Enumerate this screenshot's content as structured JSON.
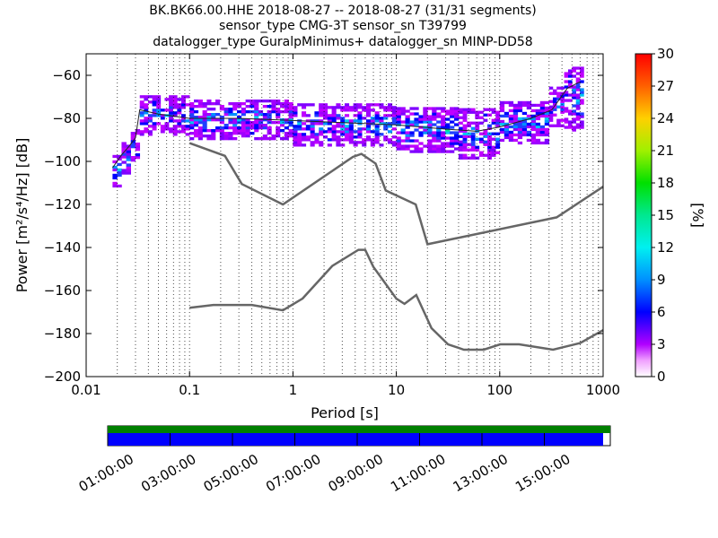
{
  "title_lines": [
    "BK.BK66.00.HHE   2018-08-27 -- 2018-08-27  (31/31 segments)",
    "sensor_type CMG-3T sensor_sn T39799",
    "datalogger_type GuralpMinimus+ datalogger_sn MINP-DD58"
  ],
  "colors": {
    "noise_model": "#666666",
    "mode_line": "#222222",
    "coverage_top": "#008000",
    "coverage_bottom": "#0000ff"
  },
  "chart_data": {
    "type": "heatmap",
    "subtype": "probabilistic power spectral density",
    "xlabel": "Period [s]",
    "ylabel": "Power [m²/s⁴/Hz] [dB]",
    "xscale": "log",
    "xlim": [
      0.01,
      1000
    ],
    "ylim": [
      -200,
      -50
    ],
    "grid": "dotted vertical lines",
    "x_ticks": [
      {
        "value": 0.01,
        "label": "0.01"
      },
      {
        "value": 0.1,
        "label": "0.1"
      },
      {
        "value": 1,
        "label": "1"
      },
      {
        "value": 10,
        "label": "10"
      },
      {
        "value": 100,
        "label": "100"
      },
      {
        "value": 1000,
        "label": "1000"
      }
    ],
    "y_ticks": [
      {
        "value": -60,
        "label": "−60"
      },
      {
        "value": -80,
        "label": "−80"
      },
      {
        "value": -100,
        "label": "−100"
      },
      {
        "value": -120,
        "label": "−120"
      },
      {
        "value": -140,
        "label": "−140"
      },
      {
        "value": -160,
        "label": "−160"
      },
      {
        "value": -180,
        "label": "−180"
      },
      {
        "value": -200,
        "label": "−200"
      }
    ],
    "colorbar": {
      "label": "[%]",
      "range": [
        0,
        30
      ],
      "ticks": [
        "0",
        "3",
        "6",
        "9",
        "12",
        "15",
        "18",
        "21",
        "24",
        "27",
        "30"
      ]
    },
    "new_high_noise_model": [
      [
        0.1,
        -91.5
      ],
      [
        0.22,
        -97.4
      ],
      [
        0.32,
        -110.5
      ],
      [
        0.8,
        -120
      ],
      [
        3.8,
        -97.9
      ],
      [
        4.6,
        -96.5
      ],
      [
        6.3,
        -101
      ],
      [
        7.9,
        -113.5
      ],
      [
        15.4,
        -120
      ],
      [
        20,
        -138.5
      ],
      [
        354.8,
        -126
      ],
      [
        10000,
        -80.1
      ]
    ],
    "new_low_noise_model": [
      [
        0.1,
        -168
      ],
      [
        0.17,
        -166.7
      ],
      [
        0.4,
        -166.7
      ],
      [
        0.8,
        -169.2
      ],
      [
        1.24,
        -163.7
      ],
      [
        2.4,
        -148.6
      ],
      [
        4.3,
        -141.1
      ],
      [
        5,
        -141.1
      ],
      [
        6,
        -149
      ],
      [
        10,
        -163.8
      ],
      [
        12,
        -166.2
      ],
      [
        15.6,
        -162.1
      ],
      [
        21.9,
        -177.5
      ],
      [
        31.6,
        -185
      ],
      [
        45,
        -187.5
      ],
      [
        70,
        -187.5
      ],
      [
        101,
        -185
      ],
      [
        154,
        -185
      ],
      [
        328,
        -187.5
      ],
      [
        600,
        -184.4
      ],
      [
        10000,
        -151.5
      ]
    ],
    "mode_curve": [
      [
        0.018,
        -103
      ],
      [
        0.022,
        -97
      ],
      [
        0.026,
        -93
      ],
      [
        0.03,
        -89
      ],
      [
        0.033,
        -76
      ],
      [
        0.05,
        -78
      ],
      [
        0.1,
        -80
      ],
      [
        0.3,
        -80
      ],
      [
        1,
        -81
      ],
      [
        3,
        -82
      ],
      [
        10,
        -83
      ],
      [
        30,
        -85
      ],
      [
        60,
        -86
      ],
      [
        100,
        -84
      ],
      [
        200,
        -80
      ],
      [
        320,
        -76
      ],
      [
        450,
        -66
      ],
      [
        600,
        -63
      ]
    ],
    "ppsd_bands": [
      {
        "pmin": 0.018,
        "pmax": 0.022,
        "dbmin": -112,
        "dbmax": -98
      },
      {
        "pmin": 0.022,
        "pmax": 0.027,
        "dbmin": -106,
        "dbmax": -92
      },
      {
        "pmin": 0.027,
        "pmax": 0.033,
        "dbmin": -100,
        "dbmax": -85
      },
      {
        "pmin": 0.033,
        "pmax": 0.1,
        "dbmin": -88,
        "dbmax": -70
      },
      {
        "pmin": 0.1,
        "pmax": 1,
        "dbmin": -90,
        "dbmax": -72
      },
      {
        "pmin": 1,
        "pmax": 10,
        "dbmin": -93,
        "dbmax": -74
      },
      {
        "pmin": 10,
        "pmax": 40,
        "dbmin": -96,
        "dbmax": -75
      },
      {
        "pmin": 40,
        "pmax": 100,
        "dbmin": -99,
        "dbmax": -76
      },
      {
        "pmin": 100,
        "pmax": 300,
        "dbmin": -92,
        "dbmax": -72
      },
      {
        "pmin": 300,
        "pmax": 420,
        "dbmin": -84,
        "dbmax": -66
      },
      {
        "pmin": 420,
        "pmax": 650,
        "dbmin": -86,
        "dbmax": -57
      }
    ],
    "coverage": {
      "time_ticks": [
        "01:00:00",
        "03:00:00",
        "05:00:00",
        "07:00:00",
        "09:00:00",
        "11:00:00",
        "13:00:00",
        "15:00:00"
      ],
      "segments": "31/31"
    }
  }
}
